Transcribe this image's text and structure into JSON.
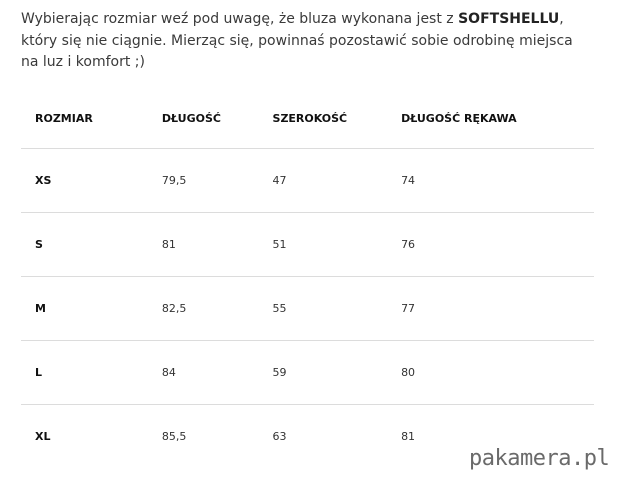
{
  "intro": {
    "line1_before": "Wybierając rozmiar weź pod uwagę, że bluza wykonana jest z ",
    "line1_bold": "SOFTSHELLU",
    "line1_after": ",",
    "line2": "który się nie ciągnie. Mierząc się, powinnaś pozostawić sobie odrobinę miejsca",
    "line3": "na luz i komfort ;)"
  },
  "table": {
    "headers": [
      "ROZMIAR",
      "DŁUGOŚĆ",
      "SZEROKOŚĆ",
      "DŁUGOŚĆ RĘKAWA"
    ],
    "rows": [
      [
        "XS",
        "79,5",
        "47",
        "74"
      ],
      [
        "S",
        "81",
        "51",
        "76"
      ],
      [
        "M",
        "82,5",
        "55",
        "77"
      ],
      [
        "L",
        "84",
        "59",
        "80"
      ],
      [
        "XL",
        "85,5",
        "63",
        "81"
      ]
    ]
  },
  "watermark": "pakamera.pl"
}
